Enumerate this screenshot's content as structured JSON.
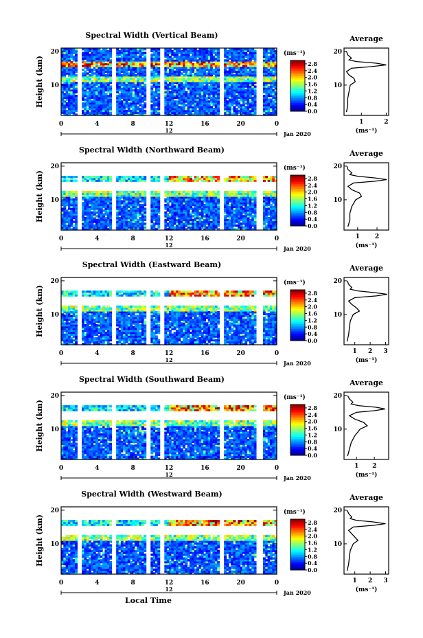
{
  "chart_data": {
    "type": "heatmap",
    "shared": {
      "x_axis": {
        "ticks": [
          "0",
          "4",
          "8",
          "12",
          "16",
          "20",
          "0"
        ],
        "range_hours": [
          0,
          24
        ],
        "day_label": "12",
        "month_label": "Jan 2020"
      },
      "y_axis": {
        "label": "Height (km)",
        "ticks": [
          "10",
          "20"
        ],
        "range_km": [
          1,
          21
        ]
      },
      "colorbar": {
        "unit": "(ms⁻¹)",
        "ticks": [
          "0.0",
          "0.4",
          "0.8",
          "1.2",
          "1.6",
          "2.0",
          "2.4",
          "2.8"
        ],
        "range": [
          0,
          3.0
        ]
      },
      "xlabel": "Local Time",
      "data_gaps_hours": [
        [
          1.8,
          2.3
        ],
        [
          5.6,
          6.0
        ],
        [
          9.5,
          9.9
        ],
        [
          11.1,
          11.5
        ],
        [
          17.6,
          18.0
        ],
        [
          21.8,
          22.4
        ]
      ],
      "profile_title": "Average",
      "profile_xlabel": "(ms⁻¹)"
    },
    "panels": [
      {
        "title": "Spectral Width (Vertical Beam)",
        "profile_ticks": [
          "1",
          "2"
        ],
        "profile_xrange": [
          0.3,
          2.1
        ],
        "profile": {
          "heights": [
            2,
            4,
            6,
            8,
            10,
            11,
            12,
            13,
            14,
            15,
            15.5,
            16,
            16.5,
            17,
            17.5,
            18,
            19,
            20
          ],
          "values": [
            0.4,
            0.45,
            0.45,
            0.5,
            0.55,
            0.75,
            0.7,
            0.5,
            0.4,
            0.6,
            1.4,
            2.0,
            1.6,
            0.8,
            0.5,
            0.6,
            0.45,
            0.4
          ]
        }
      },
      {
        "title": "Spectral Width (Northward Beam)",
        "profile_ticks": [
          "1",
          "2"
        ],
        "profile_xrange": [
          0.3,
          2.6
        ],
        "profile": {
          "heights": [
            2,
            4,
            6,
            8,
            10,
            11,
            12,
            13,
            14,
            15,
            15.5,
            16,
            16.5,
            17,
            17.5,
            18,
            19,
            20
          ],
          "values": [
            0.5,
            0.6,
            0.6,
            0.7,
            0.9,
            1.2,
            1.1,
            0.7,
            0.5,
            0.8,
            1.9,
            2.5,
            1.9,
            1.0,
            0.6,
            0.7,
            0.5,
            0.45
          ]
        }
      },
      {
        "title": "Spectral Width (Eastward Beam)",
        "profile_ticks": [
          "1",
          "2",
          "3"
        ],
        "profile_xrange": [
          0.3,
          3.2
        ],
        "profile": {
          "heights": [
            2,
            4,
            6,
            8,
            10,
            11,
            12,
            13,
            14,
            15,
            15.5,
            16,
            16.5,
            17,
            17.5,
            18,
            19,
            20
          ],
          "values": [
            0.5,
            0.6,
            0.65,
            0.7,
            0.9,
            1.3,
            1.1,
            0.8,
            0.6,
            1.0,
            2.4,
            3.1,
            2.3,
            1.2,
            0.7,
            0.8,
            0.6,
            0.5
          ]
        }
      },
      {
        "title": "Spectral Width (Southward Beam)",
        "profile_ticks": [
          "1",
          "2"
        ],
        "profile_xrange": [
          0.3,
          2.8
        ],
        "profile": {
          "heights": [
            2,
            4,
            6,
            8,
            10,
            11,
            12,
            13,
            14,
            15,
            15.5,
            16,
            16.5,
            17,
            17.5,
            18,
            19,
            20
          ],
          "values": [
            0.5,
            0.6,
            0.7,
            0.9,
            1.2,
            1.6,
            1.4,
            0.9,
            0.6,
            1.0,
            2.0,
            2.6,
            2.1,
            1.1,
            0.7,
            0.8,
            0.6,
            0.5
          ]
        }
      },
      {
        "title": "Spectral Width (Westward Beam)",
        "profile_ticks": [
          "1",
          "2",
          "3"
        ],
        "profile_xrange": [
          0.3,
          3.2
        ],
        "profile": {
          "heights": [
            2,
            4,
            6,
            8,
            10,
            11,
            12,
            13,
            14,
            15,
            15.5,
            16,
            16.5,
            17,
            17.5,
            18,
            19,
            20
          ],
          "values": [
            0.5,
            0.6,
            0.65,
            0.7,
            0.9,
            1.2,
            1.0,
            0.8,
            0.6,
            0.9,
            2.2,
            3.0,
            2.2,
            1.1,
            0.7,
            0.8,
            0.6,
            0.5
          ]
        }
      }
    ]
  }
}
